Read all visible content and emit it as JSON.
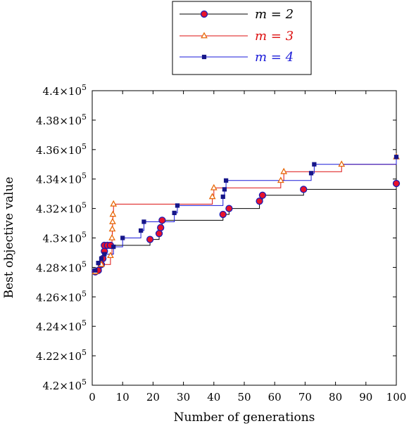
{
  "chart_data": {
    "type": "line",
    "title": "",
    "xlabel": "Number of generations",
    "ylabel": "Best objective value",
    "xlim": [
      0,
      100
    ],
    "ylim": [
      420000,
      440000
    ],
    "x_ticks": [
      0,
      10,
      20,
      30,
      40,
      50,
      60,
      70,
      80,
      90,
      100
    ],
    "x_tick_labels": [
      "0",
      "10",
      "20",
      "30",
      "40",
      "50",
      "60",
      "70",
      "80",
      "90",
      "100"
    ],
    "y_ticks": [
      420000,
      422000,
      424000,
      426000,
      428000,
      430000,
      432000,
      434000,
      436000,
      438000,
      440000
    ],
    "y_tick_labels": [
      {
        "mantissa": "4.2",
        "exp": "5"
      },
      {
        "mantissa": "4.22",
        "exp": "5"
      },
      {
        "mantissa": "4.24",
        "exp": "5"
      },
      {
        "mantissa": "4.26",
        "exp": "5"
      },
      {
        "mantissa": "4.28",
        "exp": "5"
      },
      {
        "mantissa": "4.3",
        "exp": "5"
      },
      {
        "mantissa": "4.32",
        "exp": "5"
      },
      {
        "mantissa": "4.34",
        "exp": "5"
      },
      {
        "mantissa": "4.36",
        "exp": "5"
      },
      {
        "mantissa": "4.38",
        "exp": "5"
      },
      {
        "mantissa": "4.4",
        "exp": "5"
      }
    ],
    "times_sign": "×10",
    "grid": false,
    "legend_position": "top-center",
    "series": [
      {
        "name": "m = 2",
        "color": "#000000",
        "marker": "circle",
        "marker_fill": "#e8132b",
        "marker_stroke": "#1b1bb5",
        "x": [
          1,
          2,
          3,
          3.5,
          4,
          4,
          5,
          6,
          19,
          22,
          22.5,
          23,
          43,
          45,
          55,
          56,
          69.5,
          100
        ],
        "y": [
          427700,
          427800,
          428200,
          428600,
          429100,
          429500,
          429500,
          429500,
          429900,
          430300,
          430700,
          431200,
          431600,
          432000,
          432500,
          432900,
          433300,
          433700
        ]
      },
      {
        "name": "m = 3",
        "color": "#dd1111",
        "marker": "triangle",
        "marker_fill": "#ffffff",
        "marker_stroke": "#e8690a",
        "x": [
          1,
          3,
          6,
          6.5,
          6.6,
          6.7,
          6.8,
          7,
          39.5,
          40,
          62,
          63,
          82,
          100
        ],
        "y": [
          427700,
          428200,
          428800,
          430000,
          430600,
          431100,
          431600,
          432300,
          432800,
          433400,
          433900,
          434500,
          435000,
          435500
        ]
      },
      {
        "name": "m = 4",
        "color": "#1a1ad8",
        "marker": "square",
        "marker_fill": "#16168a",
        "marker_stroke": "#16168a",
        "x": [
          1,
          2,
          3,
          4,
          7,
          10,
          16,
          17,
          27,
          28,
          43,
          43.5,
          44,
          72,
          73,
          100
        ],
        "y": [
          427800,
          428300,
          428600,
          428900,
          429400,
          430000,
          430500,
          431100,
          431700,
          432200,
          432800,
          433300,
          433900,
          434400,
          435000,
          435500
        ]
      }
    ]
  }
}
